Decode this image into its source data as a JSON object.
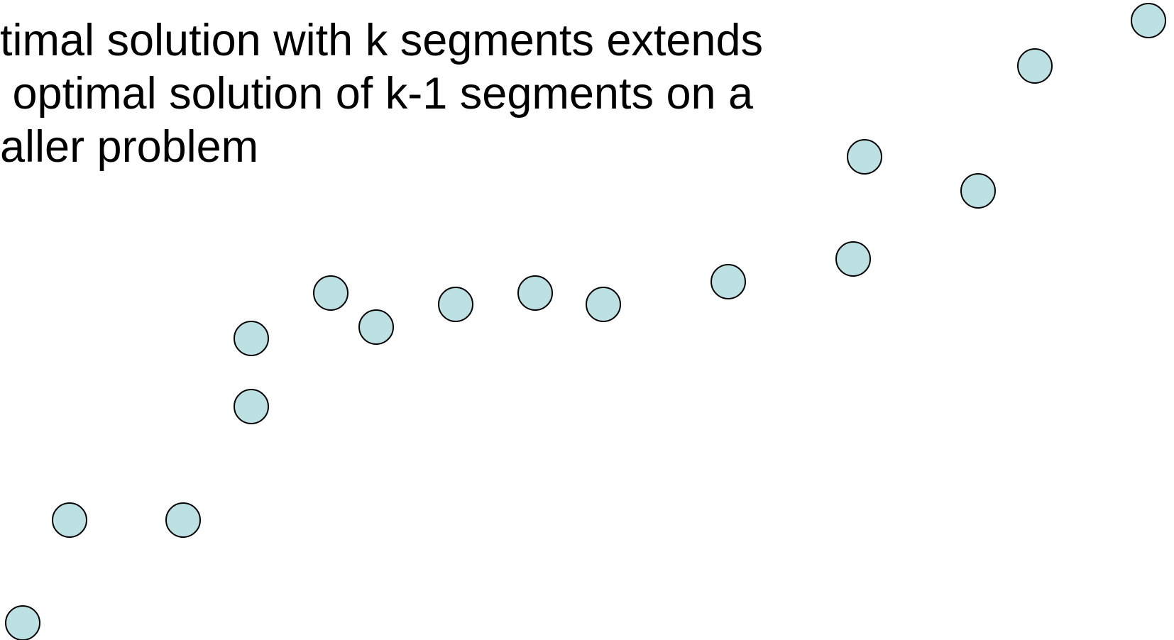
{
  "text_lines": [
    "timal solution with k segments extends",
    " optimal solution of k-1 segments on a",
    "aller problem"
  ],
  "point_fill": "#bde0e3",
  "point_stroke": "#000000"
}
